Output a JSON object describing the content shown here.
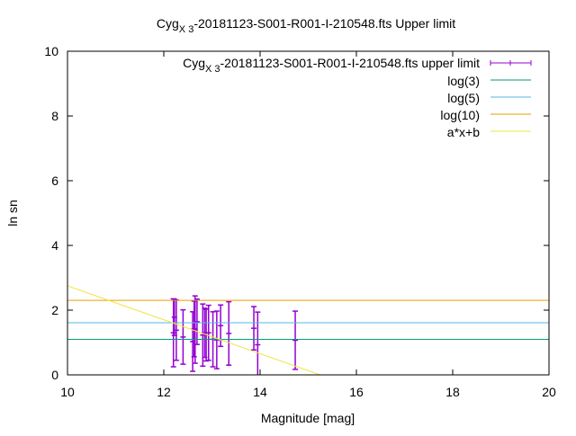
{
  "chart_data": {
    "type": "scatter",
    "title": {
      "main": "Cyg",
      "sub": "X 3",
      "rest": "-20181123-S001-R001-I-210548.fts Upper limit"
    },
    "xlabel": "Magnitude [mag]",
    "ylabel": "ln sn",
    "xlim": [
      10,
      20
    ],
    "ylim": [
      0,
      10
    ],
    "xticks": [
      10,
      12,
      14,
      16,
      18,
      20
    ],
    "yticks": [
      0,
      2,
      4,
      6,
      8,
      10
    ],
    "grid": false,
    "legend_position": "top-right",
    "series": [
      {
        "name": {
          "main": "Cyg",
          "sub": "X 3",
          "rest": "-20181123-S001-R001-I-210548.fts upper limit"
        },
        "kind": "errorbars",
        "color": "#9400d3",
        "points": [
          {
            "x": 12.2,
            "y": 1.3,
            "yerr": 1.05
          },
          {
            "x": 12.22,
            "y": 1.78,
            "yerr": 0.56
          },
          {
            "x": 12.26,
            "y": 1.38,
            "yerr": 0.93
          },
          {
            "x": 12.4,
            "y": 1.17,
            "yerr": 0.84
          },
          {
            "x": 12.6,
            "y": 1.03,
            "yerr": 0.92
          },
          {
            "x": 12.63,
            "y": 1.42,
            "yerr": 0.86
          },
          {
            "x": 12.65,
            "y": 1.4,
            "yerr": 1.04
          },
          {
            "x": 12.69,
            "y": 1.64,
            "yerr": 0.7
          },
          {
            "x": 12.81,
            "y": 1.23,
            "yerr": 0.96
          },
          {
            "x": 12.85,
            "y": 1.3,
            "yerr": 0.76
          },
          {
            "x": 12.88,
            "y": 1.23,
            "yerr": 0.8
          },
          {
            "x": 12.93,
            "y": 1.3,
            "yerr": 0.85
          },
          {
            "x": 13.02,
            "y": 1.1,
            "yerr": 0.85
          },
          {
            "x": 13.1,
            "y": 1.08,
            "yerr": 0.89
          },
          {
            "x": 13.18,
            "y": 1.52,
            "yerr": 0.64
          },
          {
            "x": 13.35,
            "y": 1.28,
            "yerr": 0.98
          },
          {
            "x": 13.87,
            "y": 1.44,
            "yerr": 0.67
          },
          {
            "x": 13.95,
            "y": 0.93,
            "yerr": 1.01
          },
          {
            "x": 14.73,
            "y": 1.07,
            "yerr": 0.9
          }
        ]
      },
      {
        "name": "log(3)",
        "kind": "hline",
        "y": 1.0986,
        "color": "#009e73"
      },
      {
        "name": "log(5)",
        "kind": "hline",
        "y": 1.6094,
        "color": "#56b4e9"
      },
      {
        "name": "log(10)",
        "kind": "hline",
        "y": 2.3026,
        "color": "#e69f00"
      },
      {
        "name": "a*x+b",
        "kind": "line",
        "a": -0.524,
        "b": 7.99,
        "color": "#f0e442"
      }
    ]
  }
}
